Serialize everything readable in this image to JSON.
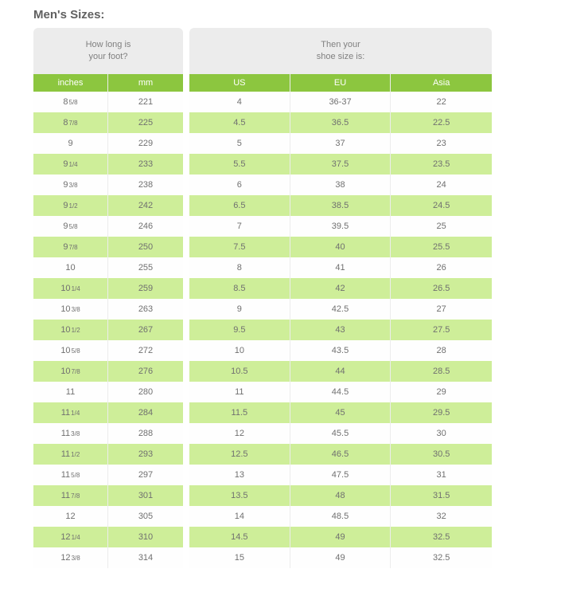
{
  "title": "Men's Sizes:",
  "left": {
    "super_header_line1": "How long is",
    "super_header_line2": "your foot?",
    "columns": [
      "inches",
      "mm"
    ]
  },
  "right": {
    "super_header_line1": "Then your",
    "super_header_line2": "shoe size is:",
    "columns": [
      "US",
      "EU",
      "Asia"
    ]
  },
  "rows": [
    {
      "inches_int": "8",
      "inches_frac": "5/8",
      "mm": "221",
      "us": "4",
      "eu": "36-37",
      "asia": "22"
    },
    {
      "inches_int": "8",
      "inches_frac": "7/8",
      "mm": "225",
      "us": "4.5",
      "eu": "36.5",
      "asia": "22.5"
    },
    {
      "inches_int": "9",
      "inches_frac": "",
      "mm": "229",
      "us": "5",
      "eu": "37",
      "asia": "23"
    },
    {
      "inches_int": "9",
      "inches_frac": "1/4",
      "mm": "233",
      "us": "5.5",
      "eu": "37.5",
      "asia": "23.5"
    },
    {
      "inches_int": "9",
      "inches_frac": "3/8",
      "mm": "238",
      "us": "6",
      "eu": "38",
      "asia": "24"
    },
    {
      "inches_int": "9",
      "inches_frac": "1/2",
      "mm": "242",
      "us": "6.5",
      "eu": "38.5",
      "asia": "24.5"
    },
    {
      "inches_int": "9",
      "inches_frac": "5/8",
      "mm": "246",
      "us": "7",
      "eu": "39.5",
      "asia": "25"
    },
    {
      "inches_int": "9",
      "inches_frac": "7/8",
      "mm": "250",
      "us": "7.5",
      "eu": "40",
      "asia": "25.5"
    },
    {
      "inches_int": "10",
      "inches_frac": "",
      "mm": "255",
      "us": "8",
      "eu": "41",
      "asia": "26"
    },
    {
      "inches_int": "10",
      "inches_frac": "1/4",
      "mm": "259",
      "us": "8.5",
      "eu": "42",
      "asia": "26.5"
    },
    {
      "inches_int": "10",
      "inches_frac": "3/8",
      "mm": "263",
      "us": "9",
      "eu": "42.5",
      "asia": "27"
    },
    {
      "inches_int": "10",
      "inches_frac": "1/2",
      "mm": "267",
      "us": "9.5",
      "eu": "43",
      "asia": "27.5"
    },
    {
      "inches_int": "10",
      "inches_frac": "5/8",
      "mm": "272",
      "us": "10",
      "eu": "43.5",
      "asia": "28"
    },
    {
      "inches_int": "10",
      "inches_frac": "7/8",
      "mm": "276",
      "us": "10.5",
      "eu": "44",
      "asia": "28.5"
    },
    {
      "inches_int": "11",
      "inches_frac": "",
      "mm": "280",
      "us": "11",
      "eu": "44.5",
      "asia": "29"
    },
    {
      "inches_int": "11",
      "inches_frac": "1/4",
      "mm": "284",
      "us": "11.5",
      "eu": "45",
      "asia": "29.5"
    },
    {
      "inches_int": "11",
      "inches_frac": "3/8",
      "mm": "288",
      "us": "12",
      "eu": "45.5",
      "asia": "30"
    },
    {
      "inches_int": "11",
      "inches_frac": "1/2",
      "mm": "293",
      "us": "12.5",
      "eu": "46.5",
      "asia": "30.5"
    },
    {
      "inches_int": "11",
      "inches_frac": "5/8",
      "mm": "297",
      "us": "13",
      "eu": "47.5",
      "asia": "31"
    },
    {
      "inches_int": "11",
      "inches_frac": "7/8",
      "mm": "301",
      "us": "13.5",
      "eu": "48",
      "asia": "31.5"
    },
    {
      "inches_int": "12",
      "inches_frac": "",
      "mm": "305",
      "us": "14",
      "eu": "48.5",
      "asia": "32"
    },
    {
      "inches_int": "12",
      "inches_frac": "1/4",
      "mm": "310",
      "us": "14.5",
      "eu": "49",
      "asia": "32.5"
    },
    {
      "inches_int": "12",
      "inches_frac": "3/8",
      "mm": "314",
      "us": "15",
      "eu": "49",
      "asia": "32.5"
    }
  ],
  "colors": {
    "header_bg": "#8cc63f",
    "row_even_bg": "#ceee99",
    "row_odd_bg": "#fefefe",
    "block_bg": "#ececec",
    "title_color": "#606060",
    "cell_color": "#707070"
  }
}
